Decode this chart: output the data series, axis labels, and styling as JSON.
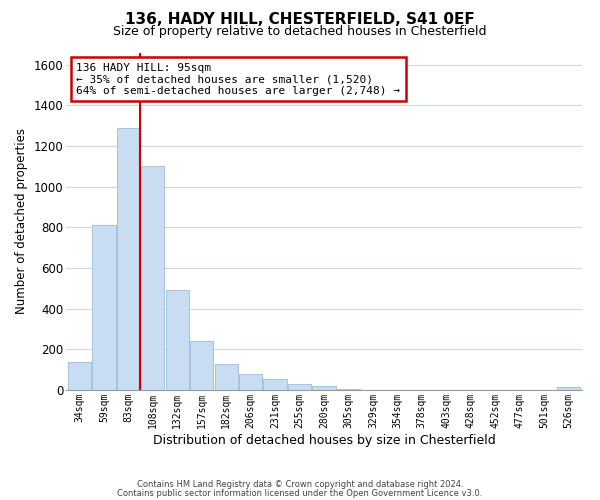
{
  "title": "136, HADY HILL, CHESTERFIELD, S41 0EF",
  "subtitle": "Size of property relative to detached houses in Chesterfield",
  "xlabel": "Distribution of detached houses by size in Chesterfield",
  "ylabel": "Number of detached properties",
  "bar_labels": [
    "34sqm",
    "59sqm",
    "83sqm",
    "108sqm",
    "132sqm",
    "157sqm",
    "182sqm",
    "206sqm",
    "231sqm",
    "255sqm",
    "280sqm",
    "305sqm",
    "329sqm",
    "354sqm",
    "378sqm",
    "403sqm",
    "428sqm",
    "452sqm",
    "477sqm",
    "501sqm",
    "526sqm"
  ],
  "bar_values": [
    140,
    810,
    1290,
    1100,
    490,
    240,
    130,
    80,
    52,
    28,
    18,
    3,
    0,
    0,
    0,
    0,
    0,
    0,
    0,
    0,
    14
  ],
  "bar_color": "#c9ddf2",
  "bar_edge_color": "#9bbcd8",
  "vline_color": "#cc0000",
  "annotation_title": "136 HADY HILL: 95sqm",
  "annotation_line1": "← 35% of detached houses are smaller (1,520)",
  "annotation_line2": "64% of semi-detached houses are larger (2,748) →",
  "annotation_box_color": "#ffffff",
  "annotation_box_edge": "#cc0000",
  "ylim": [
    0,
    1660
  ],
  "yticks": [
    0,
    200,
    400,
    600,
    800,
    1000,
    1200,
    1400,
    1600
  ],
  "footer1": "Contains HM Land Registry data © Crown copyright and database right 2024.",
  "footer2": "Contains public sector information licensed under the Open Government Licence v3.0.",
  "background_color": "#ffffff",
  "grid_color": "#d0d8e8"
}
